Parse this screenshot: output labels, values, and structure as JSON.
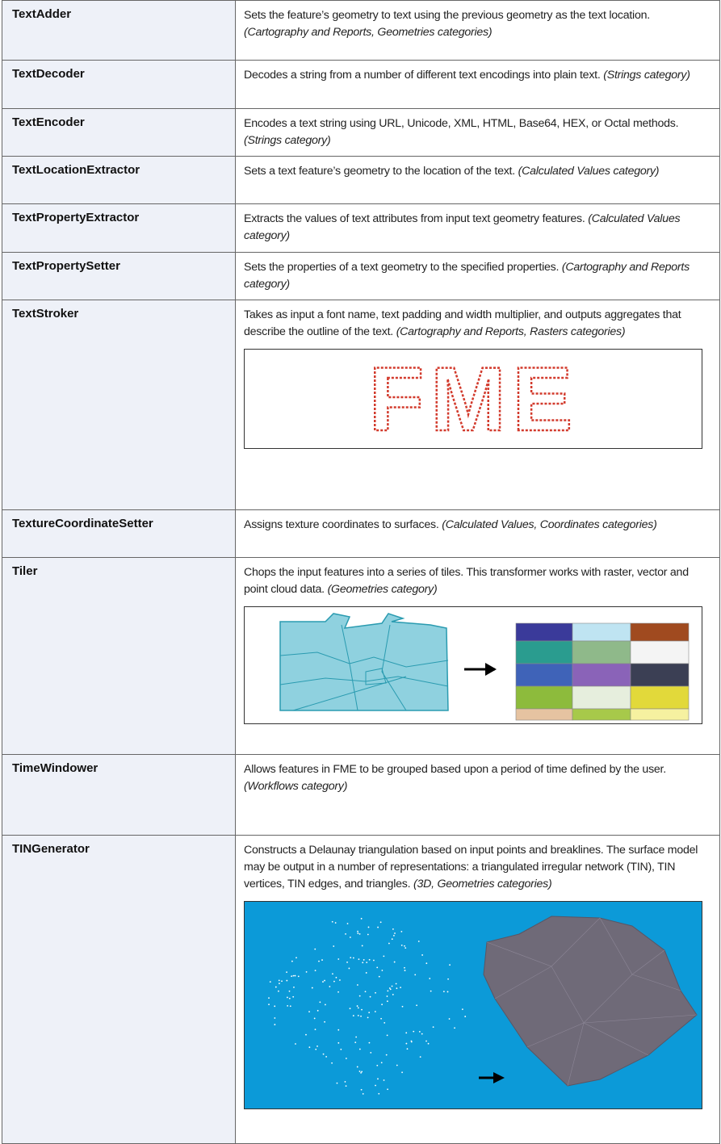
{
  "rows": [
    {
      "name": "TextAdder",
      "description": "Sets the feature’s geometry to text using the previous geometry as the text location.",
      "category": "(Cartography and Reports, Geometries categories)"
    },
    {
      "name": "TextDecoder",
      "description": "Decodes a string from a number of different text encodings into plain text.",
      "category": "(Strings category)"
    },
    {
      "name": "TextEncoder",
      "description": "Encodes a text string using URL, Unicode, XML, HTML, Base64, HEX, or Octal methods.",
      "category": "(Strings category)"
    },
    {
      "name": "TextLocationExtractor",
      "description": "Sets a text feature’s geometry to the location of the text.",
      "category": "(Calculated Values category)"
    },
    {
      "name": "TextPropertyExtractor",
      "description": "Extracts the values of text attributes from input text geometry features.",
      "category": "(Calculated Values category)"
    },
    {
      "name": "TextPropertySetter",
      "description": "Sets the properties of a text geometry to the specified properties.",
      "category": "(Cartography and Reports category)"
    },
    {
      "name": "TextStroker",
      "description": "Takes as input a font name, text padding and width multiplier, and outputs aggregates that describe the outline of the text.",
      "category": "(Cartography and Reports, Rasters categories)",
      "image_text": "FME"
    },
    {
      "name": "TextureCoordinateSetter",
      "description": "Assigns texture coordinates to surfaces.",
      "category": "(Calculated Values, Coordinates categories)"
    },
    {
      "name": "Tiler",
      "description": "Chops the input features into a series of tiles. This transformer works with raster, vector and point cloud data.",
      "category": "(Geometries category)"
    },
    {
      "name": "TimeWindower",
      "description": "Allows features in FME to be grouped based upon a period of time defined by the user.",
      "category": "(Workflows category)"
    },
    {
      "name": "TINGenerator",
      "description": "Constructs a Delaunay triangulation based on input points and breaklines. The surface model may be output in a number of representations: a triangulated irregular network (TIN), TIN vertices, TIN edges, and triangles.",
      "category": "(3D, Geometries categories)"
    }
  ]
}
